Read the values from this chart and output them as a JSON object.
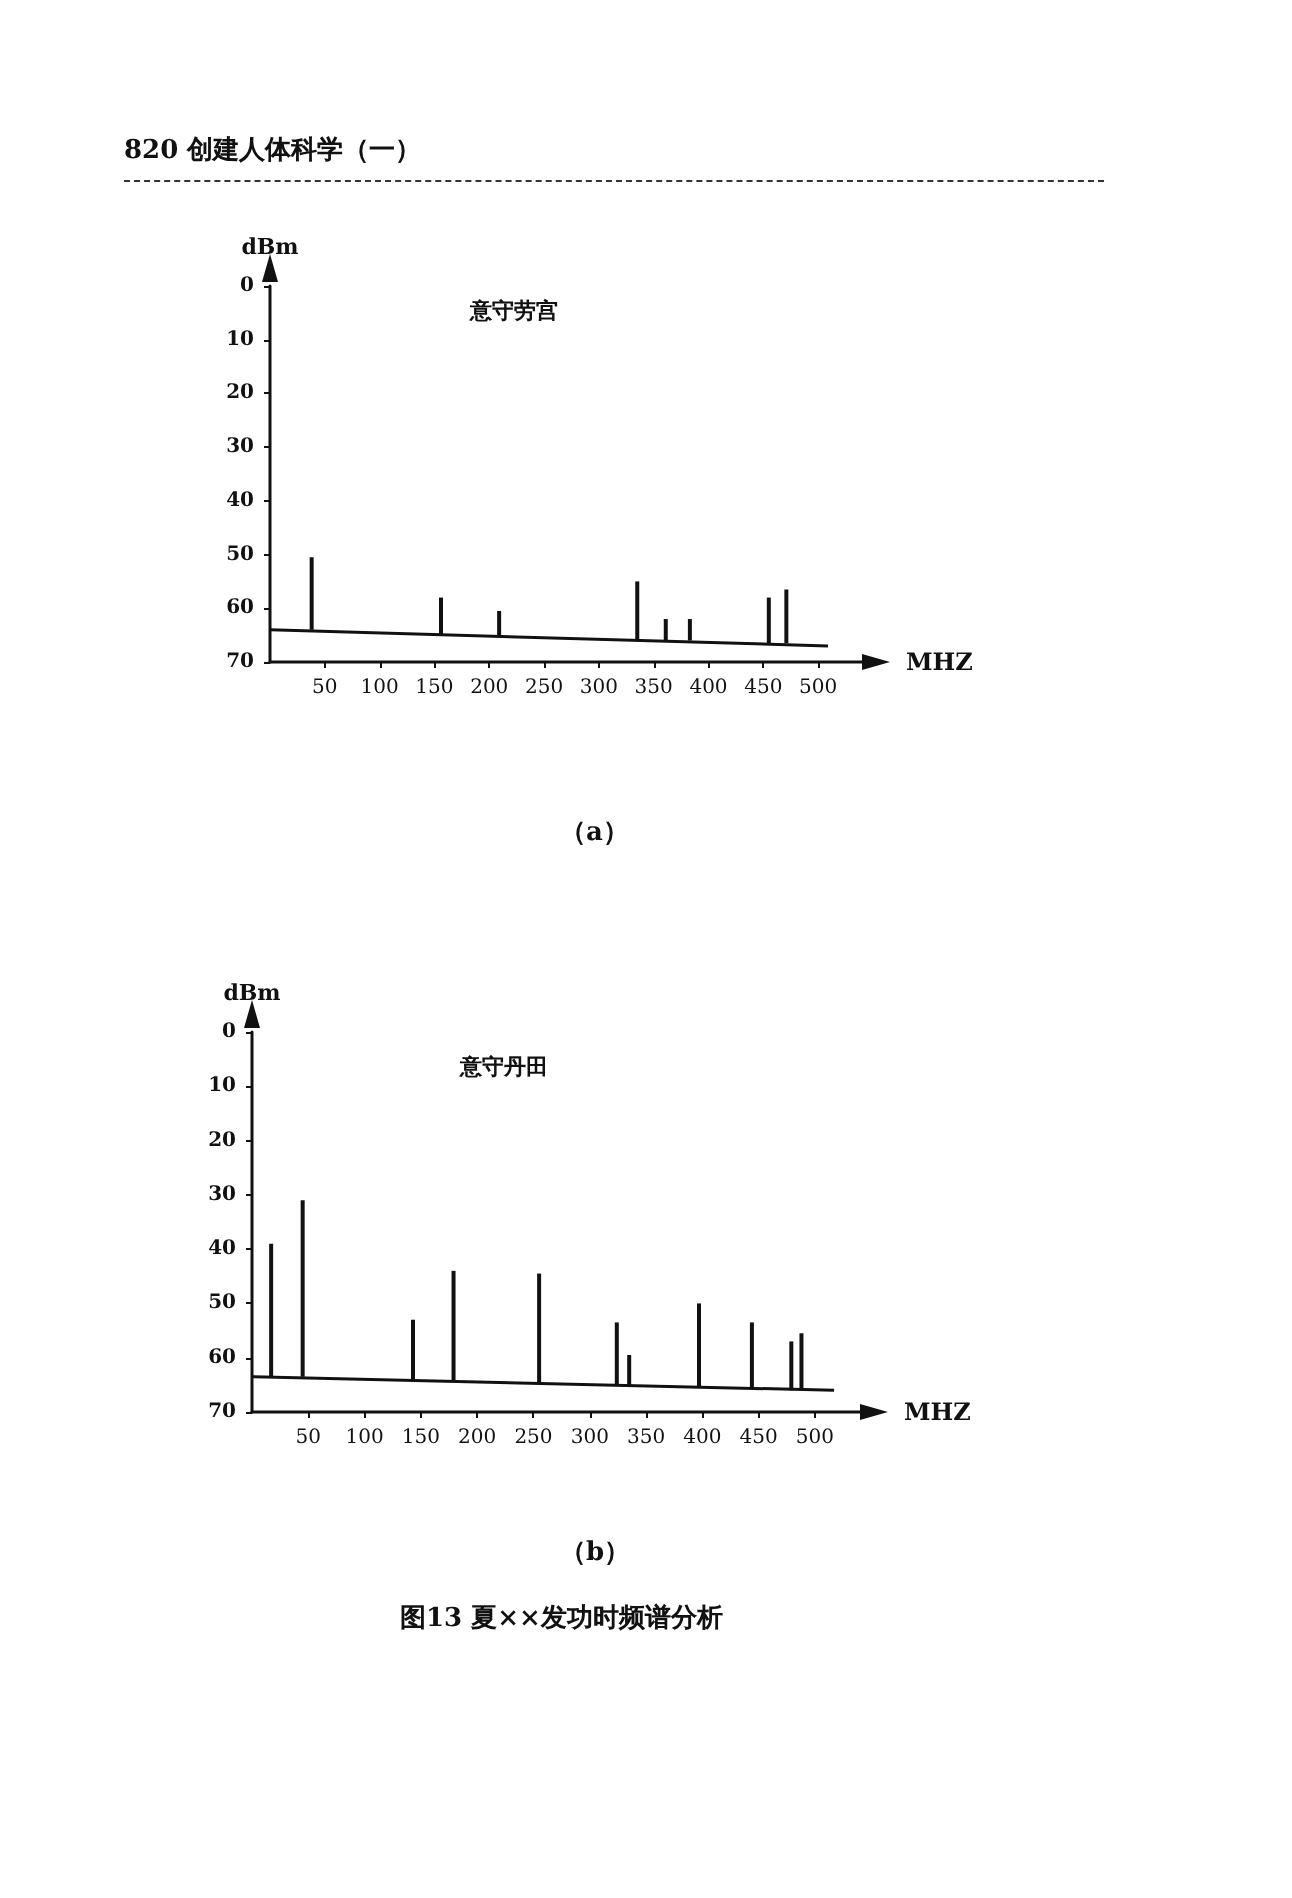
{
  "chart_data": [
    {
      "type": "bar",
      "title": "意守劳宫",
      "subtitle": "（a）",
      "xlabel": "MHZ",
      "ylabel": "dBm",
      "annotations": [
        "820 创建人体科学（一）"
      ],
      "x": [
        38,
        156,
        209,
        335,
        361,
        383,
        455,
        471
      ],
      "series": [
        {
          "color": "#111111",
          "base": [
            50.5,
            58,
            60.5,
            55,
            62,
            62,
            58,
            56.5
          ],
          "values": [
            13.5,
            7,
            4.5,
            11,
            4,
            4,
            8.5,
            10
          ]
        },
        {
          "type": "line",
          "color": "#111111",
          "x": [
            0,
            509
          ],
          "values": [
            64,
            67
          ]
        }
      ],
      "xlim": [
        0,
        540
      ],
      "xticks": [
        50,
        100,
        150,
        200,
        250,
        300,
        350,
        400,
        450,
        500
      ],
      "ylim": [
        70,
        0
      ],
      "yticks": [
        0,
        10,
        20,
        30,
        40,
        50,
        60,
        70
      ],
      "grid": false,
      "marker": "none"
    },
    {
      "type": "bar",
      "title": "意守丹田",
      "subtitle": "（b）",
      "xlabel": "MHZ",
      "ylabel": "dBm",
      "annotations": [
        "图13 夏××发功时频谱分析"
      ],
      "x": [
        17,
        45,
        143,
        179,
        255,
        324,
        335,
        397,
        444,
        479,
        488
      ],
      "series": [
        {
          "color": "#111111",
          "base": [
            39,
            31,
            53,
            44,
            44.5,
            53.5,
            59.5,
            50,
            53.5,
            57,
            55.5
          ],
          "values": [
            24.5,
            32.5,
            11,
            20.5,
            20,
            11.5,
            5.5,
            15.5,
            12,
            9,
            10.5
          ]
        },
        {
          "type": "line",
          "color": "#111111",
          "x": [
            0,
            517
          ],
          "values": [
            63.5,
            66
          ]
        }
      ],
      "xlim": [
        0,
        540
      ],
      "xticks": [
        50,
        100,
        150,
        200,
        250,
        300,
        350,
        400,
        450,
        500
      ],
      "ylim": [
        70,
        0
      ],
      "yticks": [
        0,
        10,
        20,
        30,
        40,
        50,
        60,
        70
      ],
      "grid": false,
      "marker": "none"
    }
  ]
}
